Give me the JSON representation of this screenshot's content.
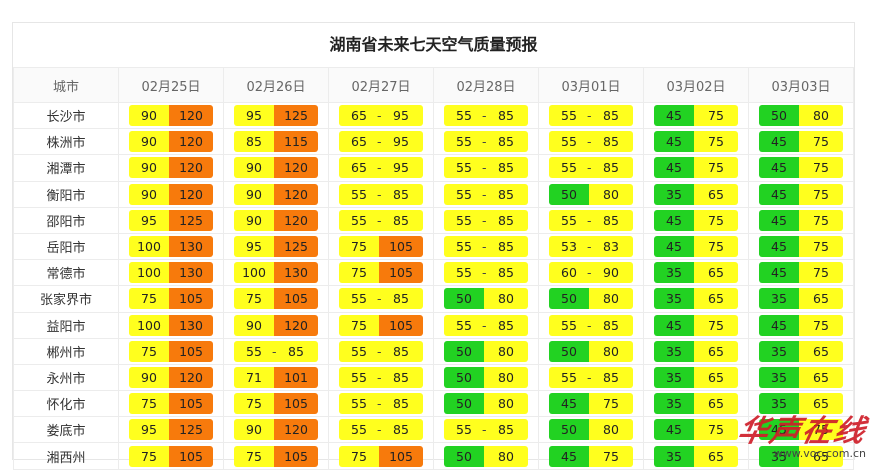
{
  "title": "湖南省未来七天空气质量预报",
  "header": {
    "city_col": "城市",
    "dates": [
      "02月25日",
      "02月26日",
      "02月27日",
      "02月28日",
      "03月01日",
      "03月02日",
      "03月03日"
    ]
  },
  "colors": {
    "green": "#22d222",
    "yellow": "#ffff1e",
    "orange": "#f77a0c"
  },
  "rows": [
    {
      "city": "长沙市",
      "cells": [
        [
          "90",
          "120",
          "y",
          "o"
        ],
        [
          "95",
          "125",
          "y",
          "o"
        ],
        [
          "65",
          "95",
          "y",
          "y"
        ],
        [
          "55",
          "85",
          "y",
          "y"
        ],
        [
          "55",
          "85",
          "y",
          "y"
        ],
        [
          "45",
          "75",
          "g",
          "y"
        ],
        [
          "50",
          "80",
          "g",
          "y"
        ]
      ]
    },
    {
      "city": "株洲市",
      "cells": [
        [
          "90",
          "120",
          "y",
          "o"
        ],
        [
          "85",
          "115",
          "y",
          "o"
        ],
        [
          "65",
          "95",
          "y",
          "y"
        ],
        [
          "55",
          "85",
          "y",
          "y"
        ],
        [
          "55",
          "85",
          "y",
          "y"
        ],
        [
          "45",
          "75",
          "g",
          "y"
        ],
        [
          "45",
          "75",
          "g",
          "y"
        ]
      ]
    },
    {
      "city": "湘潭市",
      "cells": [
        [
          "90",
          "120",
          "y",
          "o"
        ],
        [
          "90",
          "120",
          "y",
          "o"
        ],
        [
          "65",
          "95",
          "y",
          "y"
        ],
        [
          "55",
          "85",
          "y",
          "y"
        ],
        [
          "55",
          "85",
          "y",
          "y"
        ],
        [
          "45",
          "75",
          "g",
          "y"
        ],
        [
          "45",
          "75",
          "g",
          "y"
        ]
      ]
    },
    {
      "city": "衡阳市",
      "cells": [
        [
          "90",
          "120",
          "y",
          "o"
        ],
        [
          "90",
          "120",
          "y",
          "o"
        ],
        [
          "55",
          "85",
          "y",
          "y"
        ],
        [
          "55",
          "85",
          "y",
          "y"
        ],
        [
          "50",
          "80",
          "g",
          "y"
        ],
        [
          "35",
          "65",
          "g",
          "y"
        ],
        [
          "45",
          "75",
          "g",
          "y"
        ]
      ]
    },
    {
      "city": "邵阳市",
      "cells": [
        [
          "95",
          "125",
          "y",
          "o"
        ],
        [
          "90",
          "120",
          "y",
          "o"
        ],
        [
          "55",
          "85",
          "y",
          "y"
        ],
        [
          "55",
          "85",
          "y",
          "y"
        ],
        [
          "55",
          "85",
          "y",
          "y"
        ],
        [
          "45",
          "75",
          "g",
          "y"
        ],
        [
          "45",
          "75",
          "g",
          "y"
        ]
      ]
    },
    {
      "city": "岳阳市",
      "cells": [
        [
          "100",
          "130",
          "y",
          "o"
        ],
        [
          "95",
          "125",
          "y",
          "o"
        ],
        [
          "75",
          "105",
          "y",
          "o"
        ],
        [
          "55",
          "85",
          "y",
          "y"
        ],
        [
          "53",
          "83",
          "y",
          "y"
        ],
        [
          "45",
          "75",
          "g",
          "y"
        ],
        [
          "45",
          "75",
          "g",
          "y"
        ]
      ]
    },
    {
      "city": "常德市",
      "cells": [
        [
          "100",
          "130",
          "y",
          "o"
        ],
        [
          "100",
          "130",
          "y",
          "o"
        ],
        [
          "75",
          "105",
          "y",
          "o"
        ],
        [
          "55",
          "85",
          "y",
          "y"
        ],
        [
          "60",
          "90",
          "y",
          "y"
        ],
        [
          "35",
          "65",
          "g",
          "y"
        ],
        [
          "45",
          "75",
          "g",
          "y"
        ]
      ]
    },
    {
      "city": "张家界市",
      "cells": [
        [
          "75",
          "105",
          "y",
          "o"
        ],
        [
          "75",
          "105",
          "y",
          "o"
        ],
        [
          "55",
          "85",
          "y",
          "y"
        ],
        [
          "50",
          "80",
          "g",
          "y"
        ],
        [
          "50",
          "80",
          "g",
          "y"
        ],
        [
          "35",
          "65",
          "g",
          "y"
        ],
        [
          "35",
          "65",
          "g",
          "y"
        ]
      ]
    },
    {
      "city": "益阳市",
      "cells": [
        [
          "100",
          "130",
          "y",
          "o"
        ],
        [
          "90",
          "120",
          "y",
          "o"
        ],
        [
          "75",
          "105",
          "y",
          "o"
        ],
        [
          "55",
          "85",
          "y",
          "y"
        ],
        [
          "55",
          "85",
          "y",
          "y"
        ],
        [
          "45",
          "75",
          "g",
          "y"
        ],
        [
          "45",
          "75",
          "g",
          "y"
        ]
      ]
    },
    {
      "city": "郴州市",
      "cells": [
        [
          "75",
          "105",
          "y",
          "o"
        ],
        [
          "55",
          "85",
          "y",
          "y"
        ],
        [
          "55",
          "85",
          "y",
          "y"
        ],
        [
          "50",
          "80",
          "g",
          "y"
        ],
        [
          "50",
          "80",
          "g",
          "y"
        ],
        [
          "35",
          "65",
          "g",
          "y"
        ],
        [
          "35",
          "65",
          "g",
          "y"
        ]
      ]
    },
    {
      "city": "永州市",
      "cells": [
        [
          "90",
          "120",
          "y",
          "o"
        ],
        [
          "71",
          "101",
          "y",
          "o"
        ],
        [
          "55",
          "85",
          "y",
          "y"
        ],
        [
          "50",
          "80",
          "g",
          "y"
        ],
        [
          "55",
          "85",
          "y",
          "y"
        ],
        [
          "35",
          "65",
          "g",
          "y"
        ],
        [
          "35",
          "65",
          "g",
          "y"
        ]
      ]
    },
    {
      "city": "怀化市",
      "cells": [
        [
          "75",
          "105",
          "y",
          "o"
        ],
        [
          "75",
          "105",
          "y",
          "o"
        ],
        [
          "55",
          "85",
          "y",
          "y"
        ],
        [
          "50",
          "80",
          "g",
          "y"
        ],
        [
          "45",
          "75",
          "g",
          "y"
        ],
        [
          "35",
          "65",
          "g",
          "y"
        ],
        [
          "35",
          "65",
          "g",
          "y"
        ]
      ]
    },
    {
      "city": "娄底市",
      "cells": [
        [
          "95",
          "125",
          "y",
          "o"
        ],
        [
          "90",
          "120",
          "y",
          "o"
        ],
        [
          "55",
          "85",
          "y",
          "y"
        ],
        [
          "55",
          "85",
          "y",
          "y"
        ],
        [
          "50",
          "80",
          "g",
          "y"
        ],
        [
          "45",
          "75",
          "g",
          "y"
        ],
        [
          "45",
          "75",
          "g",
          "y"
        ]
      ]
    },
    {
      "city": "湘西州",
      "cells": [
        [
          "75",
          "105",
          "y",
          "o"
        ],
        [
          "75",
          "105",
          "y",
          "o"
        ],
        [
          "75",
          "105",
          "y",
          "o"
        ],
        [
          "50",
          "80",
          "g",
          "y"
        ],
        [
          "45",
          "75",
          "g",
          "y"
        ],
        [
          "35",
          "65",
          "g",
          "y"
        ],
        [
          "35",
          "65",
          "g",
          "y"
        ]
      ]
    }
  ],
  "watermark": {
    "logo": "华声在线",
    "url": "www.voc.com.cn"
  }
}
